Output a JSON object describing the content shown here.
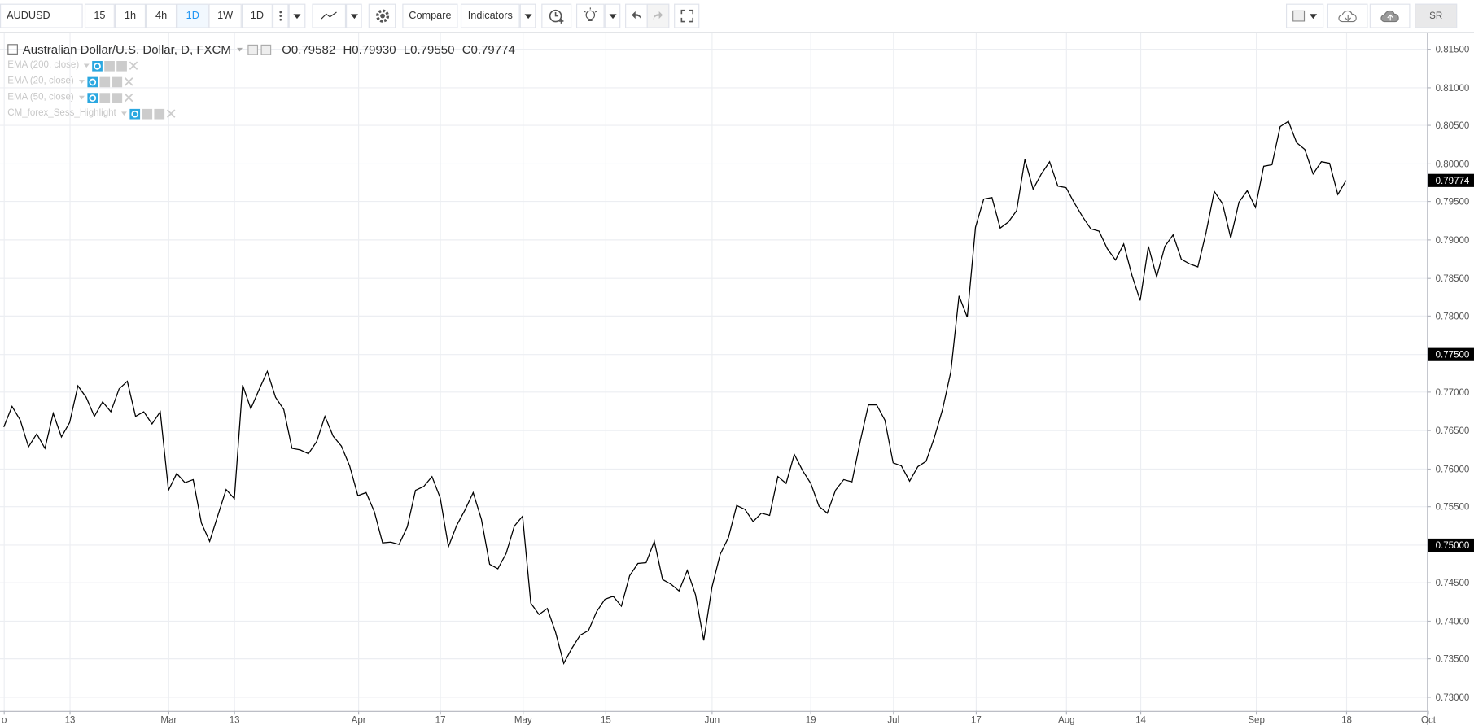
{
  "toolbar": {
    "symbol": "AUDUSD",
    "intervals": [
      "15",
      "1h",
      "4h",
      "1D",
      "1W",
      "1D"
    ],
    "active_interval_index": 3,
    "compare": "Compare",
    "indicators": "Indicators",
    "account": "SR"
  },
  "legend": {
    "title": "Australian Dollar/U.S. Dollar, D, FXCM",
    "ohlc": [
      {
        "label": "O",
        "value": "0.79582"
      },
      {
        "label": "H",
        "value": "0.79930"
      },
      {
        "label": "L",
        "value": "0.79550"
      },
      {
        "label": "C",
        "value": "0.79774"
      }
    ],
    "studies": [
      "EMA (200, close)",
      "EMA (20, close)",
      "EMA (50, close)",
      "CM_forex_Sess_Highlight"
    ]
  },
  "chart_data": {
    "type": "line",
    "color": "#000000",
    "grid": true,
    "values": [
      0.7654,
      0.7681,
      0.7663,
      0.7628,
      0.7645,
      0.7626,
      0.7672,
      0.7641,
      0.766,
      0.7708,
      0.7693,
      0.7668,
      0.7687,
      0.7674,
      0.7704,
      0.7714,
      0.7668,
      0.7674,
      0.7658,
      0.7674,
      0.7571,
      0.7593,
      0.7581,
      0.7585,
      0.7528,
      0.7504,
      0.7538,
      0.7572,
      0.756,
      0.7709,
      0.7678,
      0.7703,
      0.7727,
      0.7693,
      0.7677,
      0.7626,
      0.7624,
      0.7619,
      0.7635,
      0.7668,
      0.7642,
      0.7629,
      0.7603,
      0.7564,
      0.7568,
      0.7543,
      0.7502,
      0.7503,
      0.75,
      0.7523,
      0.7571,
      0.7576,
      0.7589,
      0.7561,
      0.7497,
      0.7525,
      0.7545,
      0.7568,
      0.7533,
      0.7474,
      0.7468,
      0.7488,
      0.7524,
      0.7537,
      0.7423,
      0.7408,
      0.7416,
      0.7385,
      0.7344,
      0.7364,
      0.7381,
      0.7387,
      0.7412,
      0.7428,
      0.7432,
      0.7419,
      0.7459,
      0.7475,
      0.7476,
      0.7504,
      0.7454,
      0.7448,
      0.7439,
      0.7466,
      0.7434,
      0.7374,
      0.7444,
      0.7487,
      0.7509,
      0.7551,
      0.7546,
      0.753,
      0.7541,
      0.7538,
      0.7589,
      0.758,
      0.7618,
      0.7597,
      0.758,
      0.755,
      0.7541,
      0.7571,
      0.7585,
      0.7582,
      0.7635,
      0.7683,
      0.7683,
      0.7663,
      0.7607,
      0.7603,
      0.7583,
      0.7602,
      0.7609,
      0.764,
      0.7677,
      0.7726,
      0.7826,
      0.7798,
      0.7916,
      0.7953,
      0.7955,
      0.7915,
      0.7923,
      0.7938,
      0.8005,
      0.7966,
      0.7986,
      0.8002,
      0.797,
      0.7968,
      0.7948,
      0.793,
      0.7914,
      0.7911,
      0.7888,
      0.7873,
      0.7894,
      0.7853,
      0.782,
      0.7891,
      0.7851,
      0.7891,
      0.7906,
      0.7874,
      0.7868,
      0.7864,
      0.7909,
      0.7963,
      0.7947,
      0.7902,
      0.7949,
      0.7964,
      0.7942,
      0.7996,
      0.7998,
      0.8048,
      0.8055,
      0.8027,
      0.8018,
      0.7986,
      0.8002,
      0.8,
      0.7959,
      0.79774
    ],
    "xlim": [
      -0.46,
      172.83
    ],
    "xticks": [
      {
        "value": 0,
        "label": "o"
      },
      {
        "value": 8,
        "label": "13"
      },
      {
        "value": 20,
        "label": "Mar"
      },
      {
        "value": 28,
        "label": "13"
      },
      {
        "value": 43,
        "label": "Apr"
      },
      {
        "value": 53,
        "label": "17"
      },
      {
        "value": 63,
        "label": "May"
      },
      {
        "value": 73,
        "label": "15"
      },
      {
        "value": 86,
        "label": "Jun"
      },
      {
        "value": 98,
        "label": "19"
      },
      {
        "value": 108,
        "label": "Jul"
      },
      {
        "value": 118,
        "label": "17"
      },
      {
        "value": 129,
        "label": "Aug"
      },
      {
        "value": 138,
        "label": "14"
      },
      {
        "value": 152,
        "label": "Sep"
      },
      {
        "value": 163,
        "label": "18"
      },
      {
        "value": 173,
        "label": "Oct"
      }
    ],
    "ylim": [
      0.72816,
      0.8171
    ],
    "yticks": [
      {
        "value": 0.73,
        "label": "0.73000"
      },
      {
        "value": 0.735,
        "label": "0.73500"
      },
      {
        "value": 0.74,
        "label": "0.74000"
      },
      {
        "value": 0.745,
        "label": "0.74500"
      },
      {
        "value": 0.75,
        "label": "0.75000",
        "highlight": true
      },
      {
        "value": 0.755,
        "label": "0.75500"
      },
      {
        "value": 0.76,
        "label": "0.76000"
      },
      {
        "value": 0.765,
        "label": "0.76500"
      },
      {
        "value": 0.77,
        "label": "0.77000"
      },
      {
        "value": 0.775,
        "label": "0.77500",
        "highlight": true
      },
      {
        "value": 0.78,
        "label": "0.78000"
      },
      {
        "value": 0.785,
        "label": "0.78500"
      },
      {
        "value": 0.79,
        "label": "0.79000"
      },
      {
        "value": 0.795,
        "label": "0.79500"
      },
      {
        "value": 0.8,
        "label": "0.80000"
      },
      {
        "value": 0.805,
        "label": "0.80500"
      },
      {
        "value": 0.81,
        "label": "0.81000"
      },
      {
        "value": 0.815,
        "label": "0.81500"
      }
    ],
    "last_price": {
      "value": 0.79774,
      "label": "0.79774"
    }
  }
}
